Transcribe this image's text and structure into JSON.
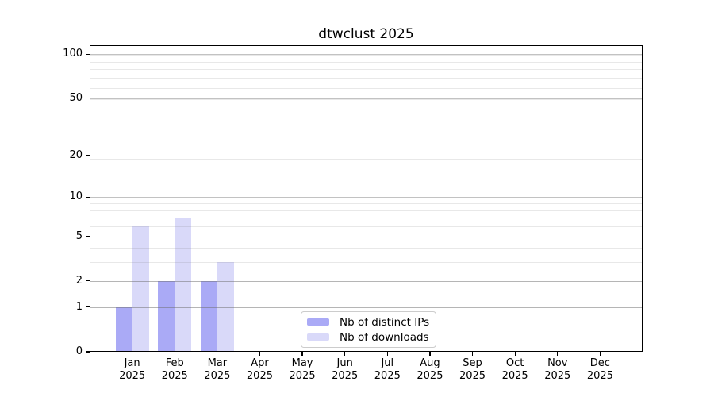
{
  "chart_data": {
    "type": "bar",
    "title": "dtwclust 2025",
    "categories": [
      {
        "month": "Jan",
        "year": "2025"
      },
      {
        "month": "Feb",
        "year": "2025"
      },
      {
        "month": "Mar",
        "year": "2025"
      },
      {
        "month": "Apr",
        "year": "2025"
      },
      {
        "month": "May",
        "year": "2025"
      },
      {
        "month": "Jun",
        "year": "2025"
      },
      {
        "month": "Jul",
        "year": "2025"
      },
      {
        "month": "Aug",
        "year": "2025"
      },
      {
        "month": "Sep",
        "year": "2025"
      },
      {
        "month": "Oct",
        "year": "2025"
      },
      {
        "month": "Nov",
        "year": "2025"
      },
      {
        "month": "Dec",
        "year": "2025"
      }
    ],
    "series": [
      {
        "name": "Nb of distinct IPs",
        "color": "#aaaaf6",
        "values": [
          1,
          2,
          2,
          0,
          0,
          0,
          0,
          0,
          0,
          0,
          0,
          0
        ]
      },
      {
        "name": "Nb of downloads",
        "color": "#d9d9f9",
        "values": [
          6,
          7,
          3,
          0,
          0,
          0,
          0,
          0,
          0,
          0,
          0,
          0
        ]
      }
    ],
    "xlabel": "",
    "ylabel": "",
    "yscale": "log1p",
    "yticks": [
      0,
      1,
      2,
      5,
      10,
      20,
      50,
      100
    ],
    "ylim": [
      0,
      115
    ],
    "grid": true,
    "legend_position": "inside-bottom-center",
    "colors": {
      "grid_major": "rgba(110,110,110,0.42)",
      "grid_minor": "rgba(110,110,110,0.16)",
      "axis": "#000000",
      "background": "#ffffff"
    }
  }
}
